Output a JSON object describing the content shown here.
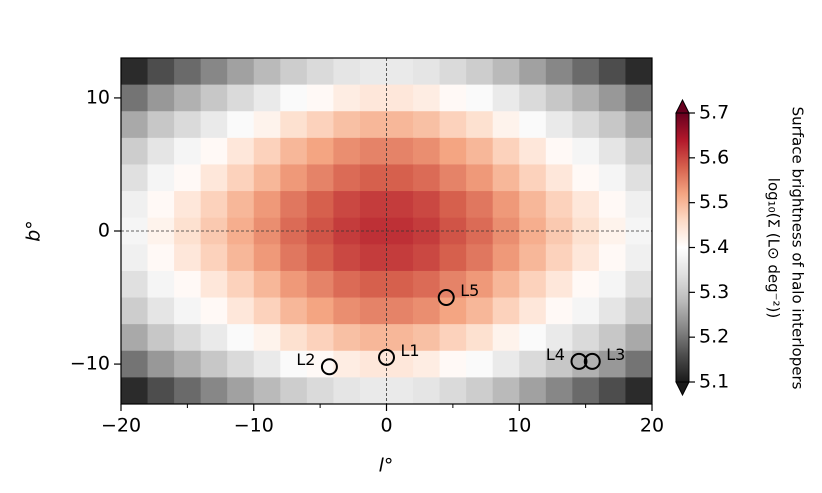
{
  "chart_data": {
    "type": "heatmap",
    "xlabel": "l°",
    "ylabel": "b°",
    "xlim": [
      -20,
      20
    ],
    "ylim": [
      -13,
      13
    ],
    "xticks": [
      {
        "value": -20,
        "label": "−20"
      },
      {
        "value": -10,
        "label": "−10"
      },
      0,
      10,
      20
    ],
    "xminorticks": [
      -15,
      -5,
      5,
      15
    ],
    "yticks": [
      {
        "value": -10,
        "label": "−10"
      },
      0,
      10
    ],
    "reference_lines": {
      "x": 0,
      "y": 0
    },
    "colormap": "RdGy_r",
    "z": [
      [
        5.12,
        5.16,
        5.19,
        5.22,
        5.25,
        5.28,
        5.31,
        5.33,
        5.35,
        5.36,
        5.36,
        5.35,
        5.33,
        5.31,
        5.28,
        5.25,
        5.22,
        5.19,
        5.16,
        5.12
      ],
      [
        5.2,
        5.24,
        5.27,
        5.3,
        5.33,
        5.36,
        5.39,
        5.41,
        5.43,
        5.44,
        5.44,
        5.43,
        5.41,
        5.39,
        5.36,
        5.33,
        5.3,
        5.27,
        5.24,
        5.2
      ],
      [
        5.26,
        5.3,
        5.33,
        5.36,
        5.39,
        5.42,
        5.45,
        5.47,
        5.49,
        5.5,
        5.5,
        5.49,
        5.47,
        5.45,
        5.42,
        5.39,
        5.36,
        5.33,
        5.3,
        5.26
      ],
      [
        5.31,
        5.35,
        5.38,
        5.41,
        5.44,
        5.47,
        5.5,
        5.52,
        5.54,
        5.55,
        5.55,
        5.54,
        5.52,
        5.5,
        5.47,
        5.44,
        5.41,
        5.38,
        5.35,
        5.31
      ],
      [
        5.34,
        5.38,
        5.41,
        5.44,
        5.47,
        5.5,
        5.53,
        5.55,
        5.57,
        5.58,
        5.58,
        5.57,
        5.55,
        5.53,
        5.5,
        5.47,
        5.44,
        5.41,
        5.38,
        5.34
      ],
      [
        5.37,
        5.41,
        5.44,
        5.47,
        5.5,
        5.53,
        5.56,
        5.58,
        5.6,
        5.61,
        5.61,
        5.6,
        5.58,
        5.56,
        5.53,
        5.5,
        5.47,
        5.44,
        5.41,
        5.37
      ],
      [
        5.38,
        5.42,
        5.45,
        5.48,
        5.51,
        5.54,
        5.57,
        5.59,
        5.61,
        5.62,
        5.62,
        5.61,
        5.59,
        5.57,
        5.54,
        5.51,
        5.48,
        5.45,
        5.42,
        5.38
      ],
      [
        5.37,
        5.41,
        5.44,
        5.47,
        5.5,
        5.53,
        5.56,
        5.58,
        5.6,
        5.61,
        5.61,
        5.6,
        5.58,
        5.56,
        5.53,
        5.5,
        5.47,
        5.44,
        5.41,
        5.37
      ],
      [
        5.34,
        5.38,
        5.41,
        5.44,
        5.47,
        5.5,
        5.53,
        5.55,
        5.57,
        5.58,
        5.58,
        5.57,
        5.55,
        5.53,
        5.5,
        5.47,
        5.44,
        5.41,
        5.38,
        5.34
      ],
      [
        5.31,
        5.35,
        5.38,
        5.41,
        5.44,
        5.47,
        5.5,
        5.52,
        5.54,
        5.55,
        5.55,
        5.54,
        5.52,
        5.5,
        5.47,
        5.44,
        5.41,
        5.38,
        5.35,
        5.31
      ],
      [
        5.26,
        5.3,
        5.33,
        5.36,
        5.39,
        5.42,
        5.45,
        5.47,
        5.49,
        5.5,
        5.5,
        5.49,
        5.47,
        5.45,
        5.42,
        5.39,
        5.36,
        5.33,
        5.3,
        5.26
      ],
      [
        5.2,
        5.24,
        5.27,
        5.3,
        5.33,
        5.36,
        5.39,
        5.41,
        5.43,
        5.44,
        5.44,
        5.43,
        5.41,
        5.39,
        5.36,
        5.33,
        5.3,
        5.27,
        5.24,
        5.2
      ],
      [
        5.12,
        5.16,
        5.19,
        5.22,
        5.25,
        5.28,
        5.31,
        5.33,
        5.35,
        5.36,
        5.36,
        5.35,
        5.33,
        5.31,
        5.28,
        5.25,
        5.22,
        5.19,
        5.16,
        5.12
      ]
    ],
    "markers": [
      {
        "label": "L1",
        "x": 0,
        "y": -9.5
      },
      {
        "label": "L2",
        "x": -4.3,
        "y": -10.2
      },
      {
        "label": "L3",
        "x": 15.5,
        "y": -9.8
      },
      {
        "label": "L4",
        "x": 14.5,
        "y": -9.8
      },
      {
        "label": "L5",
        "x": 4.5,
        "y": -5
      }
    ],
    "colorbar": {
      "label": [
        "Surface brightness of halo interlopers",
        "log₁₀(Σ (L⊙ deg⁻²))"
      ],
      "lim": [
        5.1,
        5.7
      ],
      "ticks": [
        5.1,
        5.2,
        5.3,
        5.4,
        5.5,
        5.6,
        5.7
      ]
    }
  }
}
